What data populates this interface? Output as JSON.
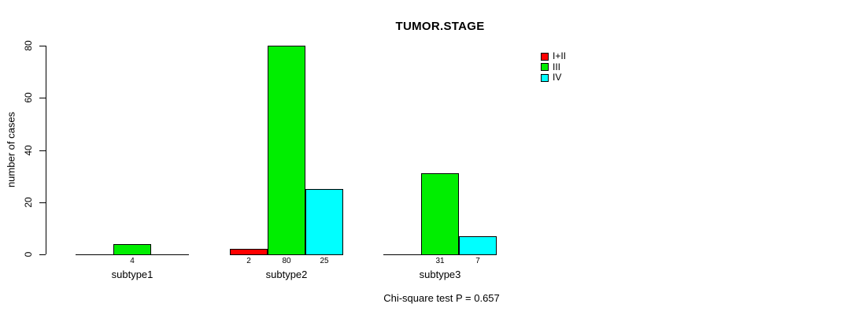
{
  "chart_data": {
    "type": "bar",
    "title": "TUMOR.STAGE",
    "ylabel": "number of cases",
    "xlabel": "",
    "annotation": "Chi-square test P = 0.657",
    "categories": [
      "subtype1",
      "subtype2",
      "subtype3"
    ],
    "series": [
      {
        "name": "I+II",
        "color": "#FF0000",
        "values": [
          0,
          2,
          0
        ]
      },
      {
        "name": "III",
        "color": "#00EE00",
        "values": [
          4,
          80,
          31
        ]
      },
      {
        "name": "IV",
        "color": "#00FFFF",
        "values": [
          0,
          25,
          7
        ]
      }
    ],
    "bar_value_labels": [
      [
        null,
        "2",
        null
      ],
      [
        "4",
        "80",
        "31"
      ],
      [
        null,
        "25",
        "7"
      ]
    ],
    "yticks": [
      0,
      20,
      40,
      60,
      80
    ],
    "ylim": [
      0,
      80
    ],
    "grid": false,
    "legend_position": "right-inside",
    "bar_border_color": "#000000",
    "background_color": "#FFFFFF"
  },
  "legend": {
    "items": [
      {
        "label": "I+II",
        "color": "#FF0000"
      },
      {
        "label": "III",
        "color": "#00EE00"
      },
      {
        "label": "IV",
        "color": "#00FFFF"
      }
    ]
  }
}
